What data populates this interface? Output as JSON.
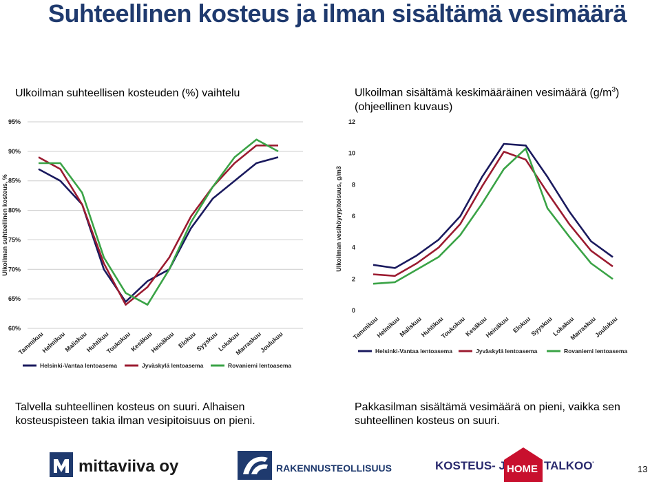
{
  "page": {
    "title": "Suhteellinen kosteus ja ilman sisältämä vesimäärä",
    "page_number": "13"
  },
  "headings": {
    "left": "Ulkoilman suhteellisen kosteuden (%) vaihtelu",
    "right_main": "Ulkoilman sisältämä keskimääräinen vesimäärä (g/m",
    "right_sup": "3",
    "right_close": ")",
    "right_sub": "(ohjeellinen kuvaus)"
  },
  "captions": {
    "left": "Talvella suhteellinen kosteus on suuri. Alhaisen kosteuspisteen takia ilman vesipitoisuus on pieni.",
    "right": "Pakkasilman sisältämä vesimäärä on pieni, vaikka sen suhteellinen kosteus on suuri."
  },
  "logos": {
    "mittaviiva": "mittaviiva oy",
    "rt": "RAKENNUSTEOLLISUUS",
    "khk_left": "KOSTEUS- JA",
    "khk_home": "HOME",
    "khk_right": "TALKOOT"
  },
  "colors": {
    "title": "#1f3a6e",
    "helsinki": "#1a1a5e",
    "jyvaskyla": "#9b1b30",
    "rovaniemi": "#3aa346",
    "grid": "#cccccc"
  },
  "chart_data": [
    {
      "type": "line",
      "ylabel": "Ulkoilman suhteellinen kosteus, %",
      "ylim": [
        60,
        95
      ],
      "yticks": [
        60,
        65,
        70,
        75,
        80,
        85,
        90,
        95
      ],
      "ytick_labels": [
        "60%",
        "65%",
        "70%",
        "75%",
        "80%",
        "85%",
        "90%",
        "95%"
      ],
      "grid": true,
      "legend_position": "bottom",
      "categories": [
        "Tammikuu",
        "Helmikuu",
        "Maliskuu",
        "Huhtikuu",
        "Toukokuu",
        "Kesäkuu",
        "Heinäkuu",
        "Elokuu",
        "Syyskuu",
        "Lokakuu",
        "Marraskuu",
        "Joulukuu"
      ],
      "series": [
        {
          "name": "Helsinki-Vantaa lentoasema",
          "color_key": "helsinki",
          "values": [
            87,
            85,
            81,
            70,
            64.5,
            68,
            70,
            77,
            82,
            85,
            88,
            89
          ]
        },
        {
          "name": "Jyväskylä lentoasema",
          "color_key": "jyvaskyla",
          "values": [
            89,
            87,
            81,
            71,
            64,
            67,
            72,
            79,
            84,
            88,
            91,
            91
          ]
        },
        {
          "name": "Rovaniemi lentoasema",
          "color_key": "rovaniemi",
          "values": [
            88,
            88,
            83,
            72,
            66,
            64,
            70,
            78,
            84,
            89,
            92,
            90
          ]
        }
      ]
    },
    {
      "type": "line",
      "ylabel": "Ulkoilman vesihöyrypitoisuus, g/m3",
      "ylim": [
        0,
        12
      ],
      "yticks": [
        0,
        2,
        4,
        6,
        8,
        10,
        12
      ],
      "ytick_labels": [
        "0",
        "2",
        "4",
        "6",
        "8",
        "10",
        "12"
      ],
      "grid": false,
      "legend_position": "bottom",
      "categories": [
        "Tammikuu",
        "Helmikuu",
        "Maliskuu",
        "Huhtikuu",
        "Toukokuu",
        "Kesäkuu",
        "Heinäkuu",
        "Elokuu",
        "Syyskuu",
        "Lokakuu",
        "Marraskuu",
        "Joulukuu"
      ],
      "series": [
        {
          "name": "Helsinki-Vantaa lentoasema",
          "color_key": "helsinki",
          "values": [
            2.9,
            2.7,
            3.5,
            4.5,
            6.0,
            8.5,
            10.6,
            10.5,
            8.5,
            6.3,
            4.4,
            3.4
          ]
        },
        {
          "name": "Jyväskylä lentoasema",
          "color_key": "jyvaskyla",
          "values": [
            2.3,
            2.2,
            3.0,
            4.0,
            5.5,
            7.9,
            10.1,
            9.6,
            7.5,
            5.5,
            3.8,
            2.8
          ]
        },
        {
          "name": "Rovaniemi lentoasema",
          "color_key": "rovaniemi",
          "values": [
            1.7,
            1.8,
            2.6,
            3.4,
            4.8,
            6.8,
            9.0,
            10.3,
            6.5,
            4.7,
            3.0,
            2.0
          ]
        }
      ]
    }
  ]
}
